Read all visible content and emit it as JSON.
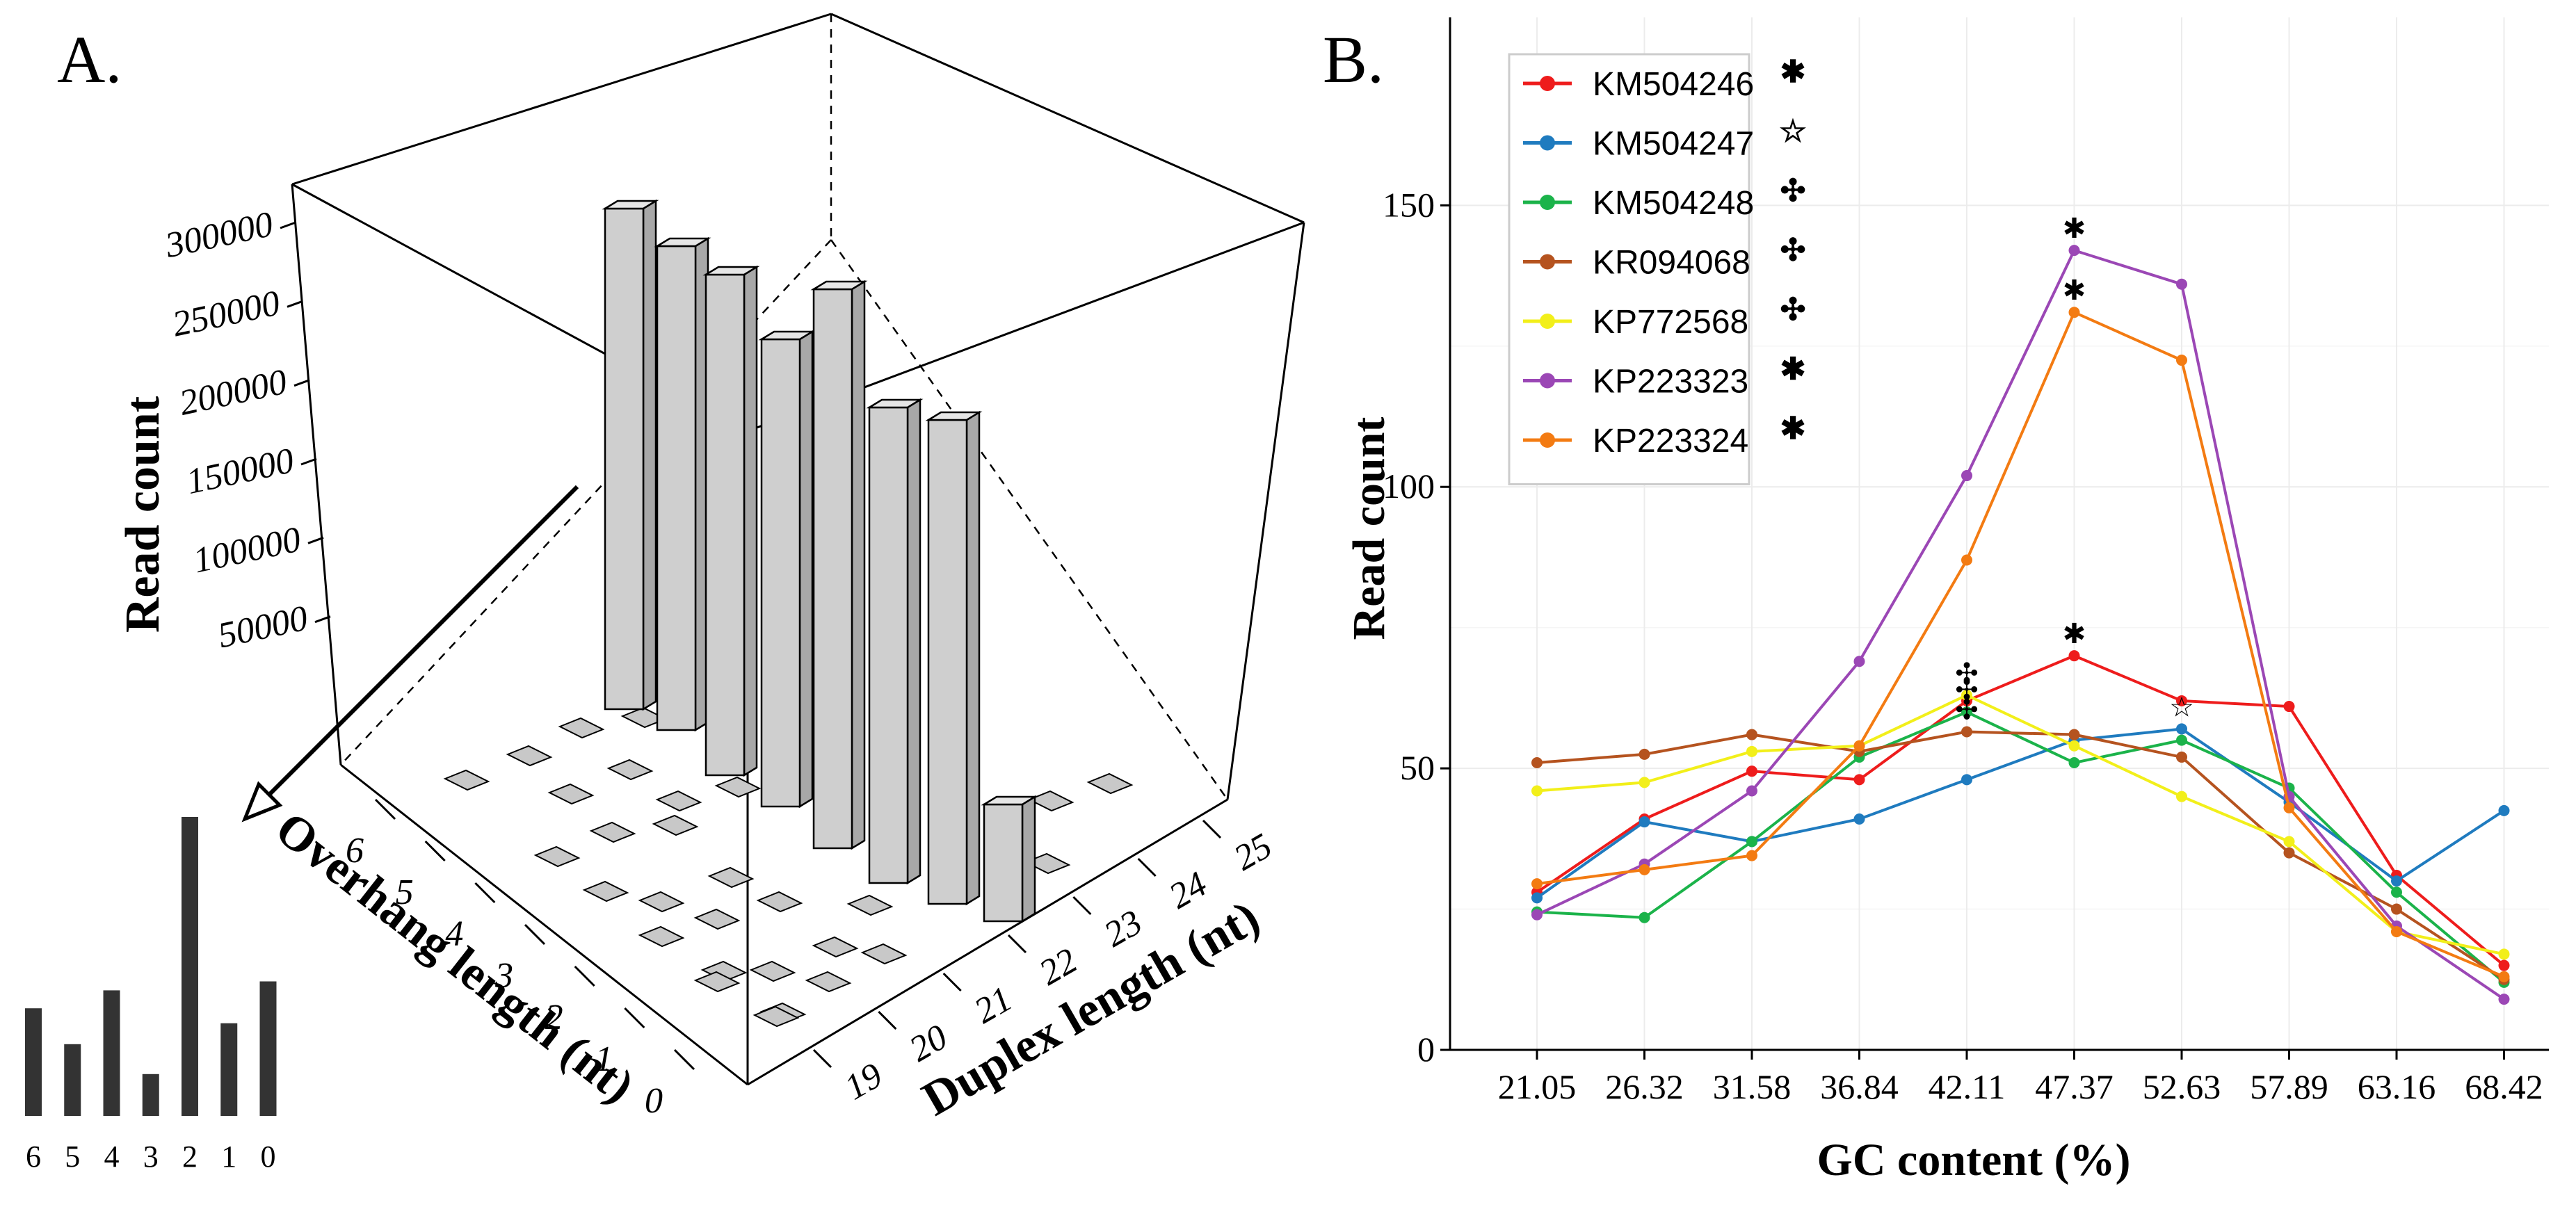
{
  "panels": {
    "a": {
      "label": "A."
    },
    "b": {
      "label": "B."
    }
  },
  "chart_data": [
    {
      "panel": "A.",
      "type": "bar3d",
      "zlabel": "Read count",
      "xlabel": "Duplex length (nt)",
      "ylabel": "Overhang length (nt)",
      "z_ticks": [
        "50000",
        "100000",
        "150000",
        "200000",
        "250000",
        "300000"
      ],
      "zlim": [
        0,
        300000
      ],
      "x_ticks": [
        "19",
        "20",
        "21",
        "22",
        "23",
        "24",
        "25"
      ],
      "y_ticks": [
        "0",
        "1",
        "2",
        "3",
        "4",
        "5",
        "6"
      ],
      "bars": [
        {
          "overhang": "2",
          "duplex": "19",
          "value": 300000
        },
        {
          "overhang": "2",
          "duplex": "20",
          "value": 290000
        },
        {
          "overhang": "2",
          "duplex": "21",
          "value": 300000
        },
        {
          "overhang": "2",
          "duplex": "22",
          "value": 280000
        },
        {
          "overhang": "2",
          "duplex": "23",
          "value": 335000
        },
        {
          "overhang": "2",
          "duplex": "24",
          "value": 285000
        },
        {
          "overhang": "2",
          "duplex": "25",
          "value": 290000
        },
        {
          "overhang": "2",
          "duplex": "26",
          "value": 70000
        }
      ],
      "inset": {
        "type": "bar",
        "categories": [
          "6",
          "5",
          "4",
          "3",
          "2",
          "1",
          "0"
        ],
        "values": [
          0.36,
          0.24,
          0.42,
          0.14,
          1.0,
          0.31,
          0.45
        ]
      }
    },
    {
      "panel": "B.",
      "type": "line",
      "xlabel": "GC content (%)",
      "ylabel": "Read count",
      "categories": [
        "21.05",
        "26.32",
        "31.58",
        "36.84",
        "42.11",
        "47.37",
        "52.63",
        "57.89",
        "63.16",
        "68.42"
      ],
      "y_ticks": [
        "0",
        "50",
        "100",
        "150"
      ],
      "ylim": [
        0,
        175
      ],
      "grid": true,
      "legend": "top-left",
      "series": [
        {
          "name": "KM504246",
          "marker": "✱",
          "color": "#ee1c1c",
          "values": [
            28,
            41,
            49.5,
            48,
            62,
            70,
            62,
            61,
            31,
            15
          ]
        },
        {
          "name": "KM504247",
          "marker": "☆",
          "color": "#1f7bbf",
          "values": [
            27,
            40.5,
            37,
            41,
            48,
            55,
            57,
            44,
            30,
            42.5
          ]
        },
        {
          "name": "KM504248",
          "marker": "✣",
          "color": "#1bb34a",
          "values": [
            24.5,
            23.5,
            37,
            52,
            60,
            51,
            55,
            46.5,
            28,
            12
          ]
        },
        {
          "name": "KR094068",
          "marker": "✣",
          "color": "#b5531f",
          "values": [
            51,
            52.5,
            56,
            53,
            56.5,
            56,
            52,
            35,
            25,
            12.5
          ]
        },
        {
          "name": "KP772568",
          "marker": "✣",
          "color": "#f2ef1a",
          "values": [
            46,
            47.5,
            53,
            54,
            63,
            54,
            45,
            37,
            21,
            17
          ]
        },
        {
          "name": "KP223323",
          "marker": "✱",
          "color": "#9b47b5",
          "values": [
            24,
            33,
            46,
            69,
            102,
            142,
            136,
            45,
            22,
            9
          ]
        },
        {
          "name": "KP223324",
          "marker": "✱",
          "color": "#f37b12",
          "values": [
            29.5,
            32,
            34.5,
            54,
            87,
            131,
            122.5,
            43,
            21,
            13
          ]
        }
      ],
      "annotations": [
        {
          "category": "47.37",
          "value": 142,
          "symbol": "✱"
        },
        {
          "category": "47.37",
          "value": 131,
          "symbol": "✱"
        },
        {
          "category": "47.37",
          "value": 70,
          "symbol": "✱"
        },
        {
          "category": "42.11",
          "value": 63,
          "symbol": "✣"
        },
        {
          "category": "42.11",
          "value": 60,
          "symbol": "✣"
        },
        {
          "category": "42.11",
          "value": 56.5,
          "symbol": "✣"
        },
        {
          "category": "52.63",
          "value": 57,
          "symbol": "☆"
        }
      ]
    }
  ]
}
